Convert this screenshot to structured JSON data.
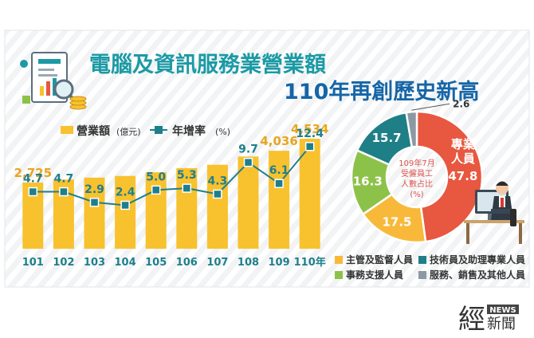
{
  "title": {
    "line1": "電腦及資訊服務業營業額",
    "line2": "110年再創歷史新高"
  },
  "colors": {
    "bar": "#F8C12E",
    "line": "#1E7F8C",
    "title_green": "#1B9AA5",
    "title_blue": "#1565A7",
    "pie_professional": "#E8573F",
    "pie_supervisor": "#F8B93A",
    "pie_admin": "#8DC24A",
    "pie_technical": "#1F7F87",
    "pie_service": "#8C98A3"
  },
  "chart_data": [
    {
      "type": "bar",
      "legend": {
        "bar_name": "營業額",
        "bar_unit": "(億元)",
        "line_name": "年增率",
        "line_unit": "(%)"
      },
      "categories": [
        "101",
        "102",
        "103",
        "104",
        "105",
        "106",
        "107",
        "108",
        "109",
        "110年"
      ],
      "series": [
        {
          "name": "營業額",
          "type": "bar",
          "values": [
            2725,
            2850,
            2930,
            3000,
            3150,
            3320,
            3460,
            3800,
            4036,
            4534
          ],
          "labels": [
            "2,725",
            "",
            "",
            "",
            "",
            "",
            "",
            "",
            "4,036",
            "4,534"
          ]
        },
        {
          "name": "年增率",
          "type": "line",
          "values": [
            4.7,
            4.7,
            2.9,
            2.4,
            5.0,
            5.3,
            4.3,
            9.7,
            6.1,
            12.4
          ],
          "labels": [
            "4.7",
            "4.7",
            "2.9",
            "2.4",
            "5.0",
            "5.3",
            "4.3",
            "9.7",
            "6.1",
            "12.4"
          ]
        }
      ],
      "ylim_bar": [
        0,
        4600
      ],
      "ylim_line": [
        -5,
        14
      ]
    },
    {
      "type": "pie",
      "center_label": [
        "109年7月",
        "受僱員工",
        "人數占比",
        "(%)"
      ],
      "slices": [
        {
          "name": "專業人員",
          "label_lines": [
            "專業",
            "人員"
          ],
          "value": 47.8,
          "value_label": "47.8",
          "color_key": "pie_professional"
        },
        {
          "name": "主管及監督人員",
          "value": 17.5,
          "value_label": "17.5",
          "color_key": "pie_supervisor"
        },
        {
          "name": "事務支援人員",
          "value": 16.3,
          "value_label": "16.3",
          "color_key": "pie_admin"
        },
        {
          "name": "技術員及助理專業人員",
          "value": 15.7,
          "value_label": "15.7",
          "color_key": "pie_technical"
        },
        {
          "name": "服務、銷售及其他人員",
          "value": 2.6,
          "value_label": "2.6",
          "color_key": "pie_service"
        }
      ],
      "legend": [
        {
          "name": "主管及監督人員",
          "color_key": "pie_supervisor"
        },
        {
          "name": "技術員及助理專業人員",
          "color_key": "pie_technical"
        },
        {
          "name": "事務支援人員",
          "color_key": "pie_admin"
        },
        {
          "name": "服務、銷售及其他人員",
          "color_key": "pie_service"
        }
      ]
    }
  ],
  "logo": {
    "main": "經",
    "sub": "新聞",
    "news": "NEWS"
  }
}
